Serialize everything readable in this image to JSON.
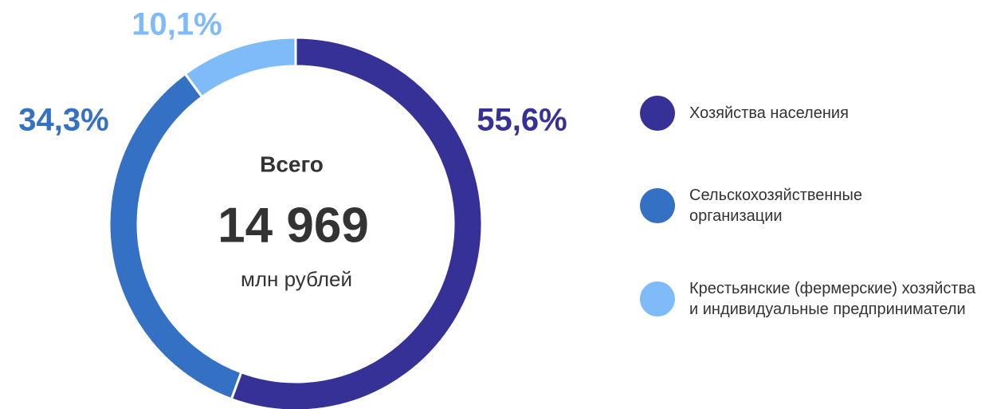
{
  "chart_data": {
    "type": "donut",
    "categories": [
      "Хозяйства населения",
      "Сельскохозяйственные организации",
      "Крестьянские (фермерские) хозяйства и индивидуальные предприниматели"
    ],
    "values": [
      55.6,
      34.3,
      10.1
    ],
    "value_labels": [
      "55,6%",
      "34,3%",
      "10,1%"
    ],
    "colors": [
      "#363196",
      "#3470c4",
      "#7fbaf9"
    ],
    "center_title": "Всего",
    "center_value": "14 969",
    "center_unit": "млн рублей"
  }
}
